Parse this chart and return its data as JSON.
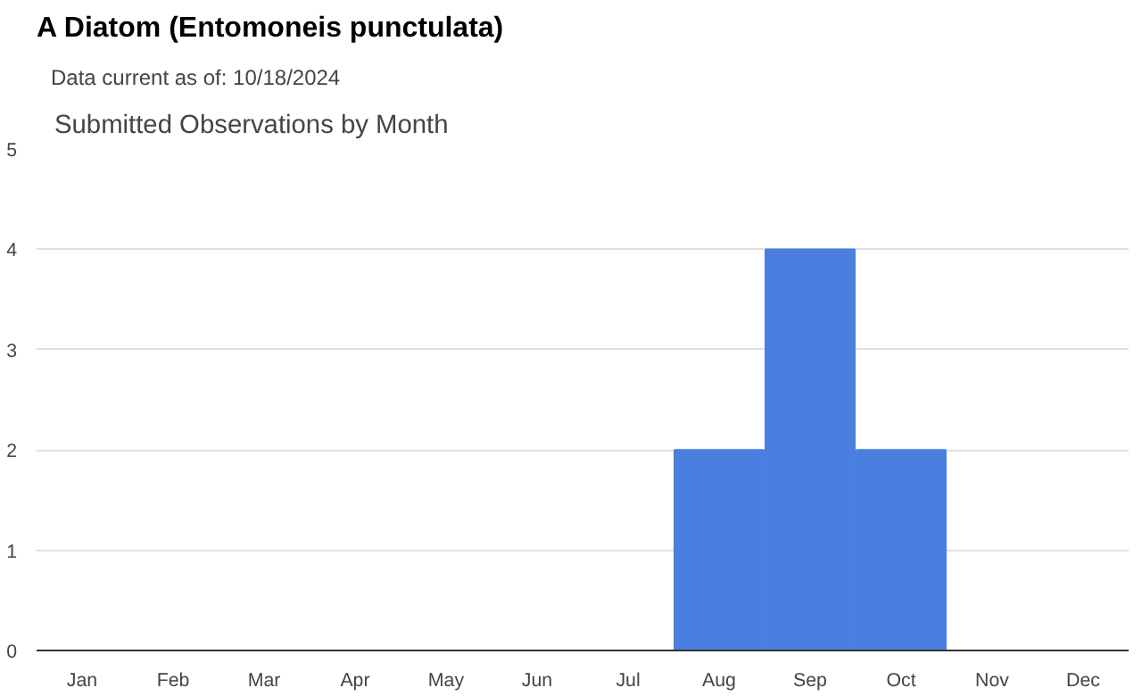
{
  "chart_data": {
    "type": "bar",
    "title": "A Diatom   (Entomoneis punctulata)",
    "subtitle": "Data current as of: 10/18/2024",
    "annotations": [
      "Submitted Observations by Month"
    ],
    "categories": [
      "Jan",
      "Feb",
      "Mar",
      "Apr",
      "May",
      "Jun",
      "Jul",
      "Aug",
      "Sep",
      "Oct",
      "Nov",
      "Dec"
    ],
    "values": [
      0,
      0,
      0,
      0,
      0,
      0,
      0,
      2,
      4,
      2,
      0,
      0
    ],
    "color": "#4a7fe0",
    "ylim": [
      0,
      5
    ],
    "yticks": [
      0,
      1,
      2,
      3,
      4,
      5
    ],
    "grid": "y"
  }
}
